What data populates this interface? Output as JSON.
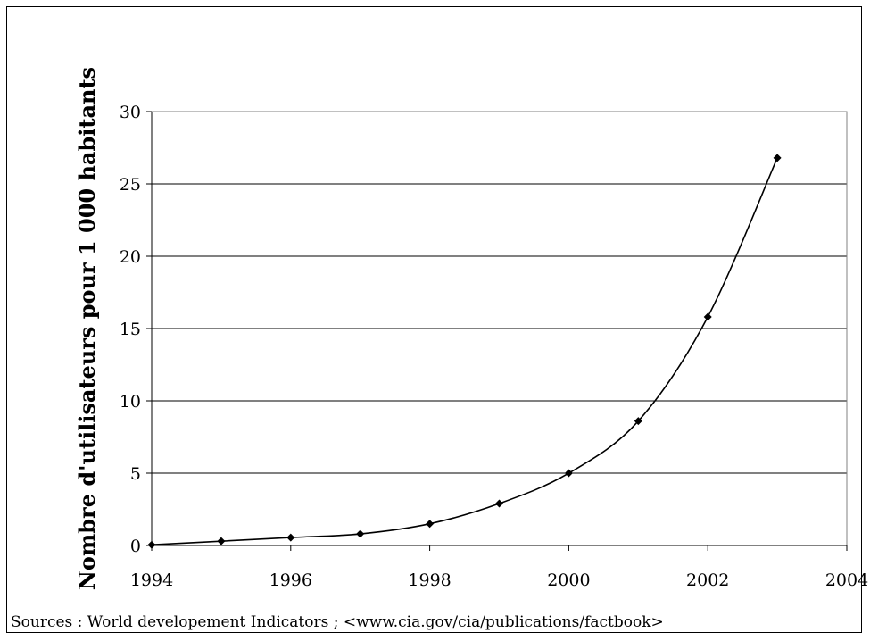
{
  "chart_data": {
    "type": "line",
    "title": "",
    "xlabel": "",
    "ylabel": "Nombre d'utilisateurs pour 1 000 habitants",
    "xlim": [
      1994,
      2004
    ],
    "ylim": [
      0,
      30
    ],
    "x_ticks": [
      "1994",
      "1996",
      "1998",
      "2000",
      "2002",
      "2004"
    ],
    "y_ticks": [
      "0",
      "5",
      "10",
      "15",
      "20",
      "25",
      "30"
    ],
    "grid": "horizontal",
    "legend": "none",
    "line_color": "#000000",
    "series": [
      {
        "x": [
          1994,
          1995,
          1996,
          1997,
          1998,
          1999,
          2000,
          2001,
          2002,
          2003
        ],
        "values": [
          0.05,
          0.3,
          0.55,
          0.8,
          1.5,
          2.9,
          5.0,
          8.6,
          15.8,
          26.8
        ]
      }
    ],
    "source": "Sources : World developement Indicators ; <www.cia.gov/cia/publications/factbook>"
  }
}
